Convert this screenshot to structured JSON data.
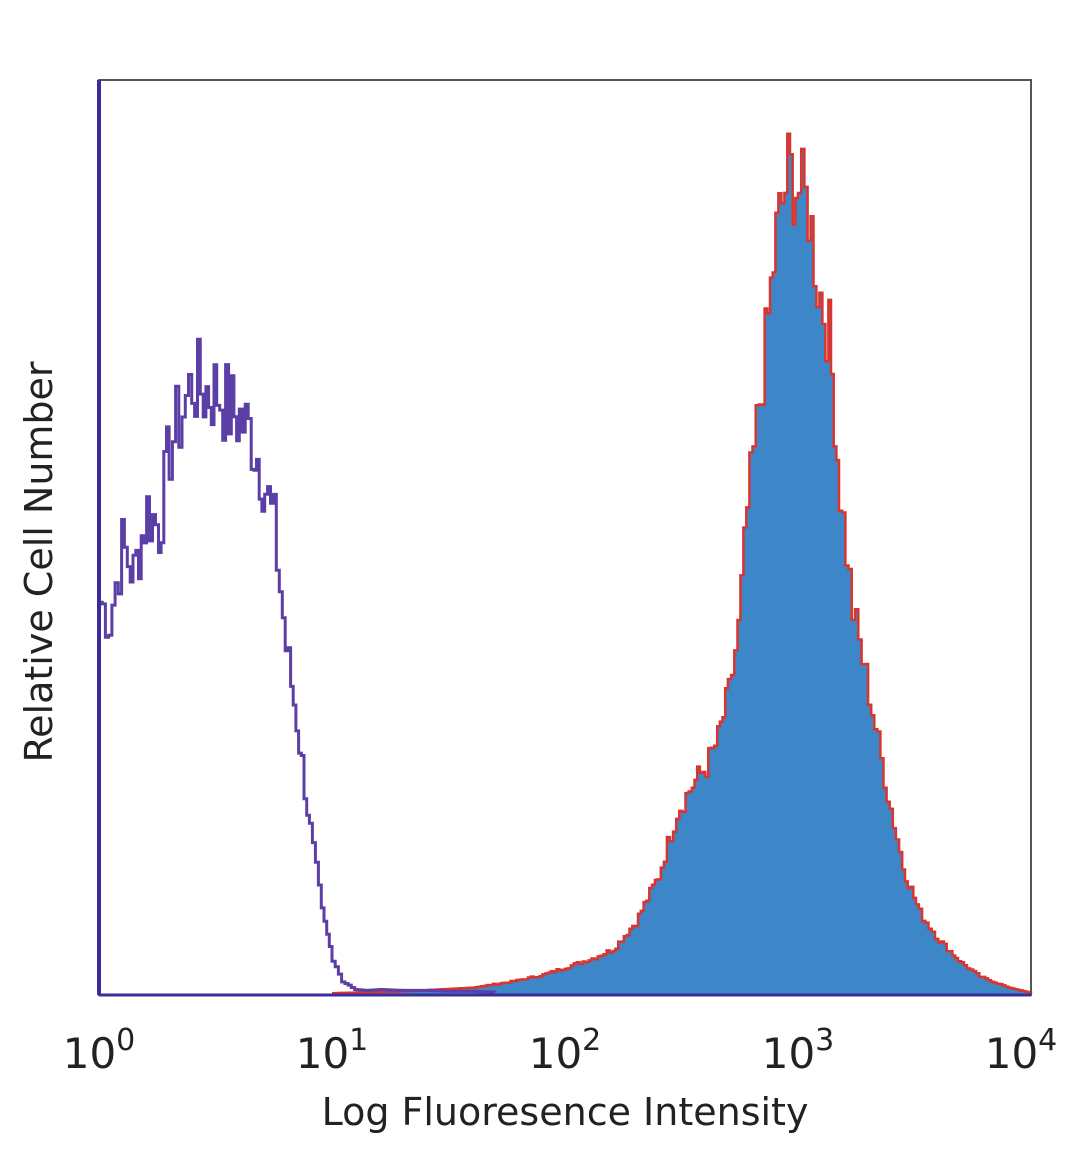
{
  "chart_data": {
    "type": "area",
    "title": "",
    "xlabel": "Log Fluoresence Intensity",
    "ylabel": "Relative Cell Number",
    "x_scale": "log",
    "xlim": [
      1,
      10000
    ],
    "ylim": [
      0,
      100
    ],
    "grid": false,
    "legend": "none",
    "x_ticks": [
      {
        "base": "10",
        "exp": "0"
      },
      {
        "base": "10",
        "exp": "1"
      },
      {
        "base": "10",
        "exp": "2"
      },
      {
        "base": "10",
        "exp": "3"
      },
      {
        "base": "10",
        "exp": "4"
      }
    ],
    "series": [
      {
        "style": "outline",
        "color": "#5b3fa6",
        "x": [
          1,
          1.1,
          1.25,
          1.4,
          1.6,
          1.8,
          2.0,
          2.2,
          2.5,
          2.8,
          3.2,
          3.6,
          4.0,
          4.5,
          5.0,
          5.6,
          6.3,
          7.0,
          8.0,
          9.0,
          10,
          11,
          12.5,
          14,
          16,
          20,
          25,
          32,
          40,
          50
        ],
        "y": [
          43,
          41,
          49,
          46,
          53,
          51,
          60,
          63,
          67,
          66,
          66,
          64,
          63,
          61,
          57,
          51,
          38,
          30,
          18,
          9,
          4,
          1.5,
          0.6,
          0.5,
          0.6,
          0.5,
          0.5,
          0.4,
          0.4,
          0.3
        ]
      },
      {
        "style": "filled",
        "color": "#3d86c8",
        "outline_color": "#d9352e",
        "x": [
          10,
          20,
          40,
          60,
          80,
          100,
          130,
          160,
          200,
          250,
          300,
          350,
          400,
          450,
          500,
          550,
          600,
          700,
          800,
          900,
          1000,
          1100,
          1200,
          1350,
          1500,
          1700,
          2000,
          2400,
          2800,
          3300,
          4000,
          5000,
          6000,
          8000,
          10000
        ],
        "y": [
          0.2,
          0.4,
          0.8,
          1.5,
          2.2,
          3,
          4,
          5,
          8,
          13,
          20,
          23,
          25,
          28,
          33,
          40,
          53,
          68,
          83,
          90,
          88,
          86,
          78,
          72,
          55,
          42,
          33,
          22,
          14,
          9,
          6,
          3.5,
          2,
          0.8,
          0.2
        ]
      }
    ]
  }
}
